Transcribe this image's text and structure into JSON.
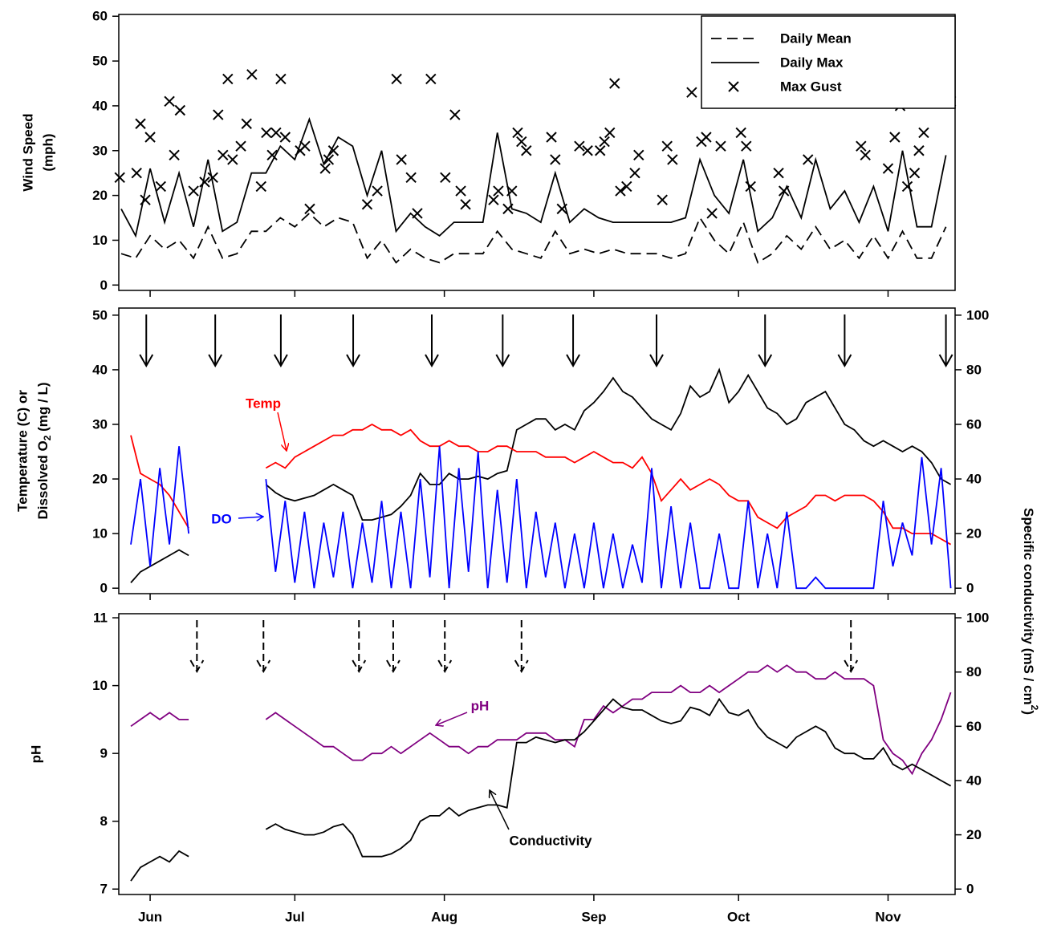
{
  "chart_data": [
    {
      "type": "line",
      "ylabel": [
        "Wind Speed",
        "(mph)"
      ],
      "ylim": [
        -1.2,
        60.4
      ],
      "yticks": [
        0,
        10,
        20,
        30,
        40,
        50,
        60
      ],
      "legend": "upper right",
      "x": [
        146,
        149,
        152,
        155,
        158,
        161,
        164,
        167,
        170,
        173,
        176,
        179,
        182,
        185,
        188,
        191,
        194,
        197,
        200,
        203,
        206,
        209,
        212,
        215,
        218,
        221,
        224,
        227,
        230,
        233,
        236,
        239,
        242,
        245,
        248,
        251,
        254,
        257,
        260,
        263,
        266,
        269,
        272,
        275,
        278,
        281,
        284,
        287,
        290,
        293,
        296,
        299,
        302,
        305,
        308,
        311,
        314,
        317
      ],
      "series": [
        {
          "name": "Daily Mean",
          "color": "#000000",
          "dash": true,
          "values": [
            7,
            6,
            11,
            8,
            10,
            6,
            13,
            6,
            7,
            12,
            12,
            15,
            13,
            16,
            13,
            15,
            14,
            6,
            10,
            5,
            8,
            6,
            5,
            7,
            7,
            7,
            12,
            8,
            7,
            6,
            12,
            7,
            8,
            7,
            8,
            7,
            7,
            7,
            6,
            7,
            15,
            10,
            7,
            14,
            5,
            7,
            11,
            8,
            13,
            8,
            10,
            6,
            11,
            6,
            12,
            6,
            6,
            13
          ]
        },
        {
          "name": "Daily Max",
          "color": "#000000",
          "values": [
            17,
            11,
            26,
            14,
            25,
            13,
            28,
            12,
            14,
            25,
            25,
            31,
            28,
            37,
            27,
            33,
            31,
            20,
            30,
            12,
            16,
            13,
            11,
            14,
            14,
            14,
            34,
            17,
            16,
            14,
            25,
            14,
            17,
            15,
            14,
            14,
            14,
            14,
            14,
            15,
            28,
            20,
            16,
            28,
            12,
            15,
            22,
            15,
            28,
            17,
            21,
            14,
            22,
            12,
            30,
            13,
            13,
            29
          ]
        },
        {
          "name": "Max Gust",
          "color": "#000000",
          "marker": "x",
          "x": [
            145.7,
            149.2,
            150,
            151,
            152,
            154.2,
            156,
            157,
            158.2,
            161,
            163.3,
            165,
            166.1,
            167.1,
            168.1,
            169.1,
            170.8,
            172,
            173.1,
            175,
            176.1,
            177.3,
            178.1,
            179.1,
            180,
            183.1,
            184.1,
            185.1,
            188.3,
            189,
            190,
            197,
            199.1,
            203.1,
            204.1,
            206.1,
            207.4,
            210.2,
            213.2,
            215.2,
            216.4,
            217.4,
            223.2,
            224.2,
            226.2,
            227,
            228.2,
            229,
            230,
            235.2,
            236,
            237.4,
            241,
            242.7,
            245.3,
            246.2,
            247.3,
            248.3,
            249.5,
            250.8,
            252.5,
            253.3,
            258.2,
            259.2,
            260.3,
            264.3,
            266.3,
            267.3,
            268.5,
            270.3,
            274.5,
            275.6,
            276.5,
            282.3,
            283.4,
            288.4,
            299.4,
            300.3,
            305,
            306.4,
            307.5,
            309,
            310.5,
            311.4,
            312.4,
            318
          ],
          "values": [
            24,
            25,
            36,
            19,
            33,
            22,
            41,
            29,
            39,
            21,
            23,
            24,
            38,
            29,
            46,
            28,
            31,
            36,
            47,
            22,
            34,
            29,
            34,
            46,
            33,
            30,
            31,
            17,
            26,
            28,
            30,
            18,
            21,
            46,
            28,
            24,
            16,
            46,
            24,
            38,
            21,
            18,
            19,
            21,
            17,
            21,
            34,
            32,
            30,
            33,
            28,
            17,
            31,
            30,
            30,
            32,
            34,
            45,
            21,
            22,
            25,
            29,
            19,
            31,
            28,
            43,
            32,
            33,
            16,
            31,
            34,
            31,
            22,
            25,
            21,
            28,
            31,
            29,
            26,
            33,
            40,
            22,
            25,
            30,
            34,
            41
          ]
        }
      ]
    },
    {
      "type": "line",
      "ylabel": [
        "Temperature (C) or",
        "Dissolved O",
        "2",
        " (mg / L)"
      ],
      "y2label": [
        "Specific conductivity (mS / cm",
        "2",
        ")"
      ],
      "ylim": [
        -1,
        51.3
      ],
      "yticks": [
        0,
        10,
        20,
        30,
        40,
        50
      ],
      "y2lim": [
        -2,
        102.6
      ],
      "y2ticks": [
        0,
        20,
        40,
        60,
        80,
        100
      ],
      "event_dates": [
        151.2,
        165.5,
        179.1,
        194.1,
        210.4,
        225.1,
        239.7,
        257,
        279.5,
        296,
        317
      ],
      "event_style": "solid",
      "x": [
        148,
        150,
        152,
        154,
        156,
        158,
        160,
        162,
        164,
        166,
        168,
        170,
        172,
        174,
        176,
        178,
        180,
        182,
        184,
        186,
        188,
        190,
        192,
        194,
        196,
        198,
        200,
        202,
        204,
        206,
        208,
        210,
        212,
        214,
        216,
        218,
        220,
        222,
        224,
        226,
        228,
        230,
        232,
        234,
        236,
        238,
        240,
        242,
        244,
        246,
        248,
        250,
        252,
        254,
        256,
        258,
        260,
        262,
        264,
        266,
        268,
        270,
        272,
        274,
        276,
        278,
        280,
        282,
        284,
        286,
        288,
        290,
        292,
        294,
        296,
        298,
        300,
        302,
        304,
        306,
        308,
        310,
        312,
        314,
        316,
        318
      ],
      "series": [
        {
          "color": "#000000",
          "axis": "y2",
          "values": [
            2,
            6,
            8,
            10,
            12,
            14,
            12,
            null,
            null,
            null,
            null,
            null,
            null,
            null,
            38,
            35,
            33,
            32,
            33,
            34,
            36,
            38,
            36,
            34,
            25,
            25,
            26,
            27,
            30,
            34,
            42,
            38,
            38,
            42,
            40,
            40,
            41,
            40,
            42,
            43,
            58,
            60,
            62,
            62,
            58,
            60,
            58,
            65,
            68,
            72,
            77,
            72,
            70,
            66,
            62,
            60,
            58,
            64,
            74,
            70,
            72,
            80,
            68,
            72,
            78,
            72,
            66,
            64,
            60,
            62,
            68,
            70,
            72,
            66,
            60,
            58,
            54,
            52,
            54,
            52,
            50,
            52,
            50,
            46,
            40,
            38
          ]
        },
        {
          "name": "Temp",
          "color": "#ff0000",
          "values": [
            28,
            21,
            20,
            19,
            17,
            14,
            11,
            null,
            null,
            null,
            null,
            null,
            null,
            null,
            22,
            23,
            22,
            24,
            25,
            26,
            27,
            28,
            28,
            29,
            29,
            30,
            29,
            29,
            28,
            29,
            27,
            26,
            26,
            27,
            26,
            26,
            25,
            25,
            26,
            26,
            25,
            25,
            25,
            24,
            24,
            24,
            23,
            24,
            25,
            24,
            23,
            23,
            22,
            24,
            21,
            16,
            18,
            20,
            18,
            19,
            20,
            19,
            17,
            16,
            16,
            13,
            12,
            11,
            13,
            14,
            15,
            17,
            17,
            16,
            17,
            17,
            17,
            16,
            14,
            11,
            11,
            10,
            10,
            10,
            9,
            8
          ]
        },
        {
          "name": "DO",
          "color": "#0000ff",
          "values": [
            8,
            20,
            4,
            22,
            8,
            26,
            10,
            null,
            null,
            null,
            null,
            null,
            null,
            null,
            20,
            3,
            16,
            1,
            14,
            0,
            12,
            2,
            14,
            0,
            12,
            1,
            16,
            0,
            14,
            0,
            20,
            2,
            26,
            0,
            22,
            3,
            25,
            0,
            18,
            1,
            20,
            0,
            14,
            2,
            12,
            0,
            10,
            0,
            12,
            0,
            10,
            0,
            8,
            1,
            22,
            0,
            15,
            0,
            12,
            0,
            0,
            10,
            0,
            0,
            16,
            0,
            10,
            0,
            14,
            0,
            0,
            2,
            0,
            0,
            0,
            0,
            0,
            0,
            16,
            4,
            12,
            6,
            24,
            8,
            22,
            0
          ]
        }
      ]
    },
    {
      "type": "line",
      "ylabel": [
        "pH"
      ],
      "ylim": [
        6.92,
        11.06
      ],
      "yticks": [
        7,
        8,
        9,
        10,
        11
      ],
      "y2lim": [
        -2,
        101.5
      ],
      "y2ticks": [
        0,
        20,
        40,
        60,
        80,
        100
      ],
      "xlim": [
        145.5,
        318.9
      ],
      "xticks": [
        {
          "value": 152,
          "label": "Jun"
        },
        {
          "value": 182,
          "label": "Jul"
        },
        {
          "value": 213,
          "label": "Aug"
        },
        {
          "value": 244,
          "label": "Sep"
        },
        {
          "value": 274,
          "label": "Oct"
        },
        {
          "value": 305,
          "label": "Nov"
        }
      ],
      "event_dates": [
        161.7,
        175.5,
        195.3,
        202.4,
        213.1,
        229,
        297.3
      ],
      "event_style": "dashed",
      "x": [
        148,
        150,
        152,
        154,
        156,
        158,
        160,
        162,
        164,
        166,
        168,
        170,
        172,
        174,
        176,
        178,
        180,
        182,
        184,
        186,
        188,
        190,
        192,
        194,
        196,
        198,
        200,
        202,
        204,
        206,
        208,
        210,
        212,
        214,
        216,
        218,
        220,
        222,
        224,
        226,
        228,
        230,
        232,
        234,
        236,
        238,
        240,
        242,
        244,
        246,
        248,
        250,
        252,
        254,
        256,
        258,
        260,
        262,
        264,
        266,
        268,
        270,
        272,
        274,
        276,
        278,
        280,
        282,
        284,
        286,
        288,
        290,
        292,
        294,
        296,
        298,
        300,
        302,
        304,
        306,
        308,
        310,
        312,
        314,
        316,
        318
      ],
      "series": [
        {
          "name": "pH",
          "color": "#800080",
          "values": [
            9.4,
            9.5,
            9.6,
            9.5,
            9.6,
            9.5,
            9.5,
            null,
            null,
            null,
            null,
            null,
            null,
            null,
            9.5,
            9.6,
            9.5,
            9.4,
            9.3,
            9.2,
            9.1,
            9.1,
            9.0,
            8.9,
            8.9,
            9.0,
            9.0,
            9.1,
            9.0,
            9.1,
            9.2,
            9.3,
            9.2,
            9.1,
            9.1,
            9.0,
            9.1,
            9.1,
            9.2,
            9.2,
            9.2,
            9.3,
            9.3,
            9.3,
            9.2,
            9.2,
            9.1,
            9.5,
            9.5,
            9.7,
            9.6,
            9.7,
            9.8,
            9.8,
            9.9,
            9.9,
            9.9,
            10.0,
            9.9,
            9.9,
            10.0,
            9.9,
            10.0,
            10.1,
            10.2,
            10.2,
            10.3,
            10.2,
            10.3,
            10.2,
            10.2,
            10.1,
            10.1,
            10.2,
            10.1,
            10.1,
            10.1,
            10.0,
            9.2,
            9.0,
            8.9,
            8.7,
            9.0,
            9.2,
            9.5,
            9.9
          ]
        },
        {
          "name": "Conductivity",
          "color": "#000000",
          "axis": "y2",
          "values": [
            3,
            8,
            10,
            12,
            10,
            14,
            12,
            null,
            null,
            null,
            null,
            null,
            null,
            null,
            22,
            24,
            22,
            21,
            20,
            20,
            21,
            23,
            24,
            20,
            12,
            12,
            12,
            13,
            15,
            18,
            25,
            27,
            27,
            30,
            27,
            29,
            30,
            31,
            31,
            30,
            54,
            54,
            56,
            55,
            54,
            55,
            55,
            58,
            62,
            66,
            70,
            67,
            66,
            66,
            64,
            62,
            61,
            62,
            67,
            66,
            64,
            70,
            65,
            64,
            66,
            60,
            56,
            54,
            52,
            56,
            58,
            60,
            58,
            52,
            50,
            50,
            48,
            48,
            52,
            46,
            44,
            46,
            44,
            42,
            40,
            38
          ]
        }
      ]
    }
  ]
}
